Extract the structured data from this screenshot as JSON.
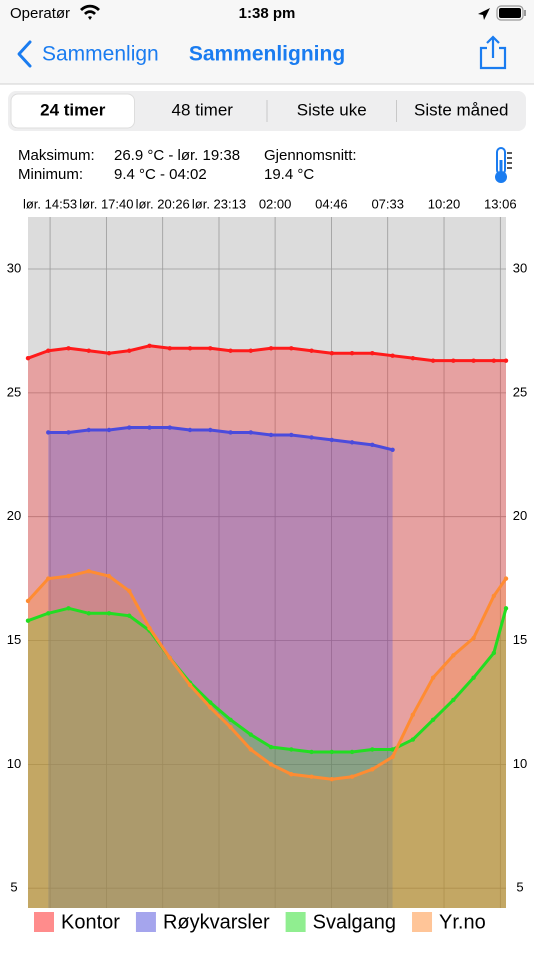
{
  "status_bar": {
    "carrier": "Operatør",
    "time": "1:38 pm"
  },
  "nav": {
    "back": "Sammenlign",
    "title": "Sammenligning"
  },
  "segments": [
    "24 timer",
    "48 timer",
    "Siste uke",
    "Siste måned"
  ],
  "selected_segment": 0,
  "stats": {
    "max_label": "Maksimum:",
    "max_value": "26.9 °C - lør. 19:38",
    "min_label": "Minimum:",
    "min_value": "9.4 °C - 04:02",
    "avg_label": "Gjennomsnitt:",
    "avg_value": "19.4 °C"
  },
  "chart_data": {
    "type": "area",
    "x": [
      0,
      1,
      2,
      3,
      4,
      5,
      6,
      7,
      8,
      9,
      10,
      11,
      12,
      13,
      14,
      15,
      16,
      17,
      18,
      19,
      20,
      21,
      22,
      23,
      23.6
    ],
    "xlim": [
      0,
      23.6
    ],
    "xticks": [
      {
        "value": 1.09,
        "label": "lør. 14:53"
      },
      {
        "value": 3.87,
        "label": "lør. 17:40"
      },
      {
        "value": 6.65,
        "label": "lør. 20:26"
      },
      {
        "value": 9.43,
        "label": "lør. 23:13"
      },
      {
        "value": 12.2,
        "label": "02:00"
      },
      {
        "value": 14.98,
        "label": "04:46"
      },
      {
        "value": 17.76,
        "label": "07:33"
      },
      {
        "value": 20.54,
        "label": "10:20"
      },
      {
        "value": 23.32,
        "label": "13:06"
      }
    ],
    "ylim": [
      4.2,
      32.1
    ],
    "yticks": [
      5,
      10,
      15,
      20,
      25,
      30
    ],
    "grid": true,
    "series": [
      {
        "name": "Kontor",
        "color": "#ff1a1a",
        "values": [
          26.4,
          26.7,
          26.8,
          26.7,
          26.6,
          26.7,
          26.9,
          26.8,
          26.8,
          26.8,
          26.7,
          26.7,
          26.8,
          26.8,
          26.7,
          26.6,
          26.6,
          26.6,
          26.5,
          26.4,
          26.3,
          26.3,
          26.3,
          26.3,
          26.3
        ]
      },
      {
        "name": "Røykvarsler",
        "color": "#4b4bdc",
        "values": [
          null,
          23.4,
          23.4,
          23.5,
          23.5,
          23.6,
          23.6,
          23.6,
          23.5,
          23.5,
          23.4,
          23.4,
          23.3,
          23.3,
          23.2,
          23.1,
          23.0,
          22.9,
          22.7,
          null,
          null,
          null,
          null,
          null,
          null
        ]
      },
      {
        "name": "Svalgang",
        "color": "#22dd22",
        "values": [
          15.8,
          16.1,
          16.3,
          16.1,
          16.1,
          16.0,
          15.4,
          14.3,
          13.3,
          12.5,
          11.8,
          11.2,
          10.7,
          10.6,
          10.5,
          10.5,
          10.5,
          10.6,
          10.6,
          11.0,
          11.8,
          12.6,
          13.5,
          14.5,
          16.3
        ]
      },
      {
        "name": "Yr.no",
        "color": "#ff8c32",
        "values": [
          16.6,
          17.5,
          17.6,
          17.8,
          17.6,
          17.0,
          15.5,
          14.3,
          13.2,
          12.3,
          11.5,
          10.6,
          10.0,
          9.6,
          9.5,
          9.4,
          9.5,
          9.8,
          10.3,
          12.0,
          13.5,
          14.4,
          15.1,
          16.8,
          17.5
        ]
      }
    ]
  }
}
